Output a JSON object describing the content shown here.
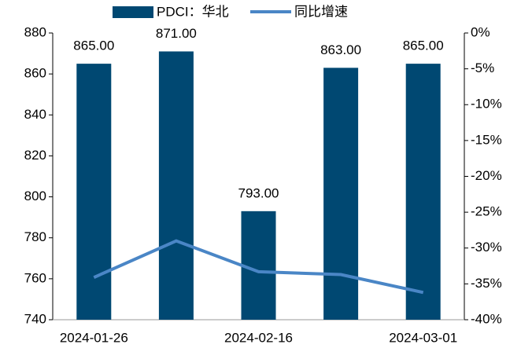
{
  "chart_data": {
    "type": "bar-line",
    "categories": [
      "2024-01-26",
      null,
      "2024-02-16",
      null,
      "2024-03-01"
    ],
    "series": [
      {
        "name": "PDCI：华北",
        "type": "bar",
        "color": "#004872",
        "values": [
          865,
          871,
          793,
          863,
          865
        ],
        "value_labels": [
          "865.00",
          "871.00",
          "793.00",
          "863.00",
          "865.00"
        ]
      },
      {
        "name": "同比增速",
        "type": "line",
        "axis": "y2",
        "color": "#4a86c6",
        "values": [
          -34.1,
          -29.0,
          -33.3,
          -33.7,
          -36.2
        ]
      }
    ],
    "ylim": [
      740,
      880
    ],
    "yticks": [
      740,
      760,
      780,
      800,
      820,
      840,
      860,
      880
    ],
    "y2lim": [
      -40,
      0
    ],
    "y2ticks": [
      {
        "value": -40,
        "label": "-40%"
      },
      {
        "value": -35,
        "label": "-35%"
      },
      {
        "value": -30,
        "label": "-30%"
      },
      {
        "value": -25,
        "label": "-25%"
      },
      {
        "value": -20,
        "label": "-20%"
      },
      {
        "value": -15,
        "label": "-15%"
      },
      {
        "value": -10,
        "label": "-10%"
      },
      {
        "value": -5,
        "label": "-5%"
      },
      {
        "value": 0,
        "label": "0%"
      }
    ],
    "legend": "top"
  }
}
